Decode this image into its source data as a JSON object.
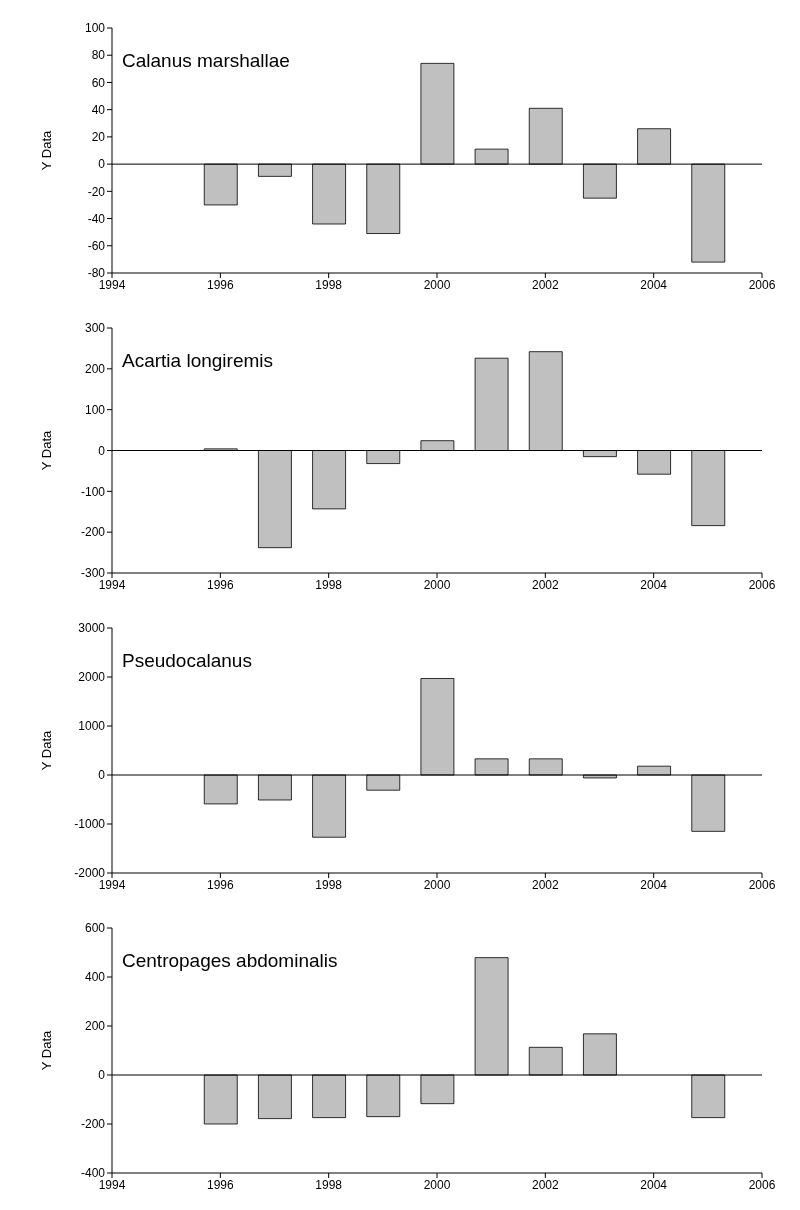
{
  "chart_data": [
    {
      "type": "bar",
      "title": "Calanus marshallae",
      "ylabel": "Y Data",
      "x": [
        1996,
        1997,
        1998,
        1999,
        2000,
        2001,
        2002,
        2003,
        2004,
        2005
      ],
      "values": [
        -30,
        -9,
        -44,
        -51,
        74,
        11,
        41,
        -25,
        26,
        -72
      ],
      "color": "#c0c0c0",
      "xlim": [
        1994,
        2006
      ],
      "xticks": [
        1994,
        1996,
        1998,
        2000,
        2002,
        2004,
        2006
      ],
      "ylim": [
        -80,
        100
      ],
      "yticks": [
        -80,
        -60,
        -40,
        -20,
        0,
        20,
        40,
        60,
        80,
        100
      ],
      "ref_lines": [
        {
          "axis": "y",
          "value": 0
        }
      ],
      "grid": false,
      "legend": false
    },
    {
      "type": "bar",
      "title": "Acartia longiremis",
      "ylabel": "Y Data",
      "x": [
        1996,
        1997,
        1998,
        1999,
        2000,
        2001,
        2002,
        2003,
        2004,
        2005
      ],
      "values": [
        4,
        -238,
        -143,
        -32,
        24,
        226,
        242,
        -15,
        -58,
        -184
      ],
      "color": "#c0c0c0",
      "xlim": [
        1994,
        2006
      ],
      "xticks": [
        1994,
        1996,
        1998,
        2000,
        2002,
        2004,
        2006
      ],
      "ylim": [
        -300,
        300
      ],
      "yticks": [
        -300,
        -200,
        -100,
        0,
        100,
        200,
        300
      ],
      "ref_lines": [
        {
          "axis": "y",
          "value": 0
        }
      ],
      "grid": false,
      "legend": false
    },
    {
      "type": "bar",
      "title": "Pseudocalanus",
      "ylabel": "Y Data",
      "x": [
        1996,
        1997,
        1998,
        1999,
        2000,
        2001,
        2002,
        2003,
        2004,
        2005
      ],
      "values": [
        -590,
        -510,
        -1270,
        -310,
        1970,
        330,
        330,
        -60,
        180,
        -1150
      ],
      "color": "#c0c0c0",
      "xlim": [
        1994,
        2006
      ],
      "xticks": [
        1994,
        1996,
        1998,
        2000,
        2002,
        2004,
        2006
      ],
      "ylim": [
        -2000,
        3000
      ],
      "yticks": [
        -2000,
        -1000,
        0,
        1000,
        2000,
        3000
      ],
      "ref_lines": [
        {
          "axis": "y",
          "value": 0
        }
      ],
      "grid": false,
      "legend": false
    },
    {
      "type": "bar",
      "title": "Centropages abdominalis",
      "ylabel": "Y Data",
      "x": [
        1996,
        1997,
        1998,
        1999,
        2000,
        2001,
        2002,
        2003,
        2004,
        2005
      ],
      "values": [
        -200,
        -178,
        -174,
        -170,
        -117,
        479,
        113,
        168,
        null,
        -174
      ],
      "color": "#c0c0c0",
      "xlim": [
        1994,
        2006
      ],
      "xticks": [
        1994,
        1996,
        1998,
        2000,
        2002,
        2004,
        2006
      ],
      "ylim": [
        -400,
        600
      ],
      "yticks": [
        -400,
        -200,
        0,
        200,
        400,
        600
      ],
      "ref_lines": [
        {
          "axis": "y",
          "value": 0
        }
      ],
      "grid": false,
      "legend": false
    }
  ]
}
